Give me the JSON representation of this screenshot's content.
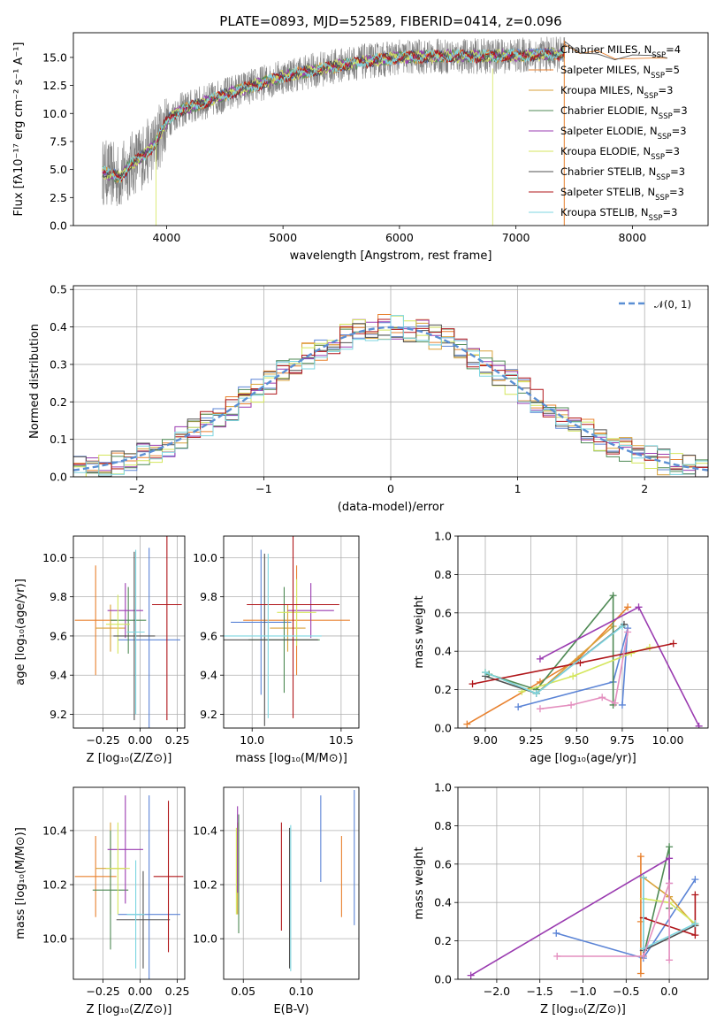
{
  "figure": {
    "title": "PLATE=0893, MJD=52589, FIBERID=0414, z=0.096"
  },
  "models": [
    {
      "name": "Chabrier MILES",
      "nssp": "4",
      "color": "#5b84d6"
    },
    {
      "name": "Salpeter MILES",
      "nssp": "5",
      "color": "#e8812e"
    },
    {
      "name": "Kroupa MILES",
      "nssp": "3",
      "color": "#d9a23a"
    },
    {
      "name": "Chabrier ELODIE",
      "nssp": "3",
      "color": "#4f8a55"
    },
    {
      "name": "Salpeter ELODIE",
      "nssp": "3",
      "color": "#9a3bb0"
    },
    {
      "name": "Kroupa ELODIE",
      "nssp": "3",
      "color": "#d4e65c"
    },
    {
      "name": "Chabrier STELIB",
      "nssp": "3",
      "color": "#505050"
    },
    {
      "name": "Salpeter STELIB",
      "nssp": "3",
      "color": "#b0161a"
    },
    {
      "name": "Kroupa STELIB",
      "nssp": "3",
      "color": "#7dd6e0"
    }
  ],
  "chart_data": [
    {
      "id": "spectrum",
      "type": "line",
      "xlabel": "wavelength [Angstrom, rest frame]",
      "ylabel": "Flux [fλ10⁻¹⁷ erg cm⁻² s⁻¹ A⁻¹]",
      "xlim": [
        3200,
        8650
      ],
      "ylim": [
        0,
        17.2
      ],
      "xticks": [
        "4000",
        "5000",
        "6000",
        "7000",
        "8000"
      ],
      "yticks": [
        "0.0",
        "2.5",
        "5.0",
        "7.5",
        "10.0",
        "12.5",
        "15.0"
      ],
      "legend_position": "top-right",
      "data_range": [
        3450,
        7420
      ],
      "continuum": [
        [
          3450,
          4.8
        ],
        [
          3600,
          4.3
        ],
        [
          3700,
          5.5
        ],
        [
          3800,
          6.2
        ],
        [
          3900,
          7.2
        ],
        [
          4000,
          9.3
        ],
        [
          4100,
          10.2
        ],
        [
          4300,
          10.9
        ],
        [
          4600,
          12.0
        ],
        [
          5000,
          13.3
        ],
        [
          5300,
          13.9
        ],
        [
          5600,
          14.5
        ],
        [
          6000,
          15.0
        ],
        [
          6400,
          15.1
        ],
        [
          6800,
          15.1
        ],
        [
          7100,
          15.2
        ],
        [
          7420,
          15.3
        ]
      ],
      "model_extra": [
        [
          7420,
          16.2
        ],
        [
          7550,
          15.6
        ],
        [
          7700,
          15.3
        ],
        [
          7850,
          15.0
        ],
        [
          8000,
          15.1
        ],
        [
          8200,
          15.0
        ],
        [
          8300,
          14.8
        ]
      ]
    },
    {
      "id": "residuals",
      "type": "histogram",
      "xlabel": "(data-model)/error",
      "ylabel": "Normed distribution",
      "xlim": [
        -2.5,
        2.5
      ],
      "ylim": [
        0,
        0.51
      ],
      "xticks": [
        "−2",
        "−1",
        "0",
        "1",
        "2"
      ],
      "yticks": [
        "0.0",
        "0.1",
        "0.2",
        "0.3",
        "0.4",
        "0.5"
      ],
      "grid": true,
      "bin_width": 0.1,
      "legend": "𝒩(0, 1)",
      "legend_position": "top-right"
    },
    {
      "id": "age-vs-Z",
      "type": "errorbar",
      "xlabel": "Z [log₁₀(Z/Z⊙)]",
      "ylabel": "age  [log₁₀(age/yr)]",
      "xlim": [
        -0.45,
        0.3
      ],
      "ylim": [
        9.13,
        10.11
      ],
      "xticks": [
        "−0.25",
        "0.00",
        "0.25"
      ],
      "yticks": [
        "9.2",
        "9.4",
        "9.6",
        "9.8",
        "10.0"
      ],
      "grid": true,
      "points": [
        {
          "x": 0.06,
          "xerr": 0.21,
          "y": 9.58,
          "yerr": 0.47
        },
        {
          "x": -0.3,
          "xerr": 0.14,
          "y": 9.68,
          "yerr": 0.28
        },
        {
          "x": -0.2,
          "xerr": 0.1,
          "y": 9.64,
          "yerr": 0.12
        },
        {
          "x": -0.08,
          "xerr": 0.12,
          "y": 9.68,
          "yerr": 0.17
        },
        {
          "x": -0.1,
          "xerr": 0.12,
          "y": 9.73,
          "yerr": 0.14
        },
        {
          "x": -0.15,
          "xerr": 0.08,
          "y": 9.66,
          "yerr": 0.15
        },
        {
          "x": -0.04,
          "xerr": 0.14,
          "y": 9.6,
          "yerr": 0.43
        },
        {
          "x": 0.18,
          "xerr": 0.1,
          "y": 9.76,
          "yerr": 0.59
        },
        {
          "x": -0.03,
          "xerr": 0.06,
          "y": 9.62,
          "yerr": 0.42
        }
      ]
    },
    {
      "id": "age-vs-mass",
      "type": "errorbar",
      "xlabel": "mass [log₁₀(M/M⊙)]",
      "ylabel": "",
      "xlim": [
        9.84,
        10.6
      ],
      "ylim": [
        9.13,
        10.11
      ],
      "xticks": [
        "10.0",
        "10.5"
      ],
      "yticks": [
        "9.2",
        "9.4",
        "9.6",
        "9.8",
        "10.0"
      ],
      "grid": true,
      "points": [
        {
          "x": 10.05,
          "xerr": 0.17,
          "y": 9.67,
          "yerr": 0.37
        },
        {
          "x": 10.25,
          "xerr": 0.3,
          "y": 9.68,
          "yerr": 0.28
        },
        {
          "x": 10.2,
          "xerr": 0.1,
          "y": 9.64,
          "yerr": 0.12
        },
        {
          "x": 10.18,
          "xerr": 0.2,
          "y": 9.58,
          "yerr": 0.27
        },
        {
          "x": 10.33,
          "xerr": 0.13,
          "y": 9.73,
          "yerr": 0.14
        },
        {
          "x": 10.25,
          "xerr": 0.11,
          "y": 9.72,
          "yerr": 0.17
        },
        {
          "x": 10.07,
          "xerr": 0.3,
          "y": 9.58,
          "yerr": 0.44
        },
        {
          "x": 10.23,
          "xerr": 0.26,
          "y": 9.76,
          "yerr": 0.58
        },
        {
          "x": 10.09,
          "xerr": 0.3,
          "y": 9.6,
          "yerr": 0.42
        }
      ]
    },
    {
      "id": "weight-vs-age",
      "type": "line",
      "xlabel": "age  [log₁₀(age/yr)]",
      "ylabel": "mass weight",
      "xlim": [
        8.85,
        10.22
      ],
      "ylim": [
        0,
        1
      ],
      "xticks": [
        "9.00",
        "9.25",
        "9.50",
        "9.75",
        "10.00"
      ],
      "yticks": [
        "0.0",
        "0.2",
        "0.4",
        "0.6",
        "0.8",
        "1.0"
      ],
      "grid": true,
      "series": [
        {
          "x": [
            9.18,
            9.7,
            9.78,
            9.75
          ],
          "y": [
            0.11,
            0.24,
            0.52,
            0.12
          ]
        },
        {
          "x": [
            8.9,
            9.3,
            9.51,
            9.78
          ],
          "y": [
            0.02,
            0.24,
            0.36,
            0.63
          ]
        },
        {
          "x": [
            9.0,
            9.28,
            9.7
          ],
          "y": [
            0.29,
            0.18,
            0.53
          ]
        },
        {
          "x": [
            9.02,
            9.28,
            9.7,
            9.7
          ],
          "y": [
            0.28,
            0.2,
            0.69,
            0.12
          ]
        },
        {
          "x": [
            9.3,
            9.84,
            10.17
          ],
          "y": [
            0.36,
            0.63,
            0.01
          ]
        },
        {
          "x": [
            9.2,
            9.48,
            9.8,
            9.9
          ],
          "y": [
            0.19,
            0.27,
            0.39,
            0.42
          ]
        },
        {
          "x": [
            9.0,
            9.28,
            9.76
          ],
          "y": [
            0.27,
            0.18,
            0.54
          ]
        },
        {
          "x": [
            8.93,
            9.52,
            10.03
          ],
          "y": [
            0.23,
            0.34,
            0.44
          ]
        },
        {
          "x": [
            9.0,
            9.28,
            9.75
          ],
          "y": [
            0.29,
            0.18,
            0.53
          ]
        },
        {
          "x": [
            9.3,
            9.47,
            9.64,
            9.71,
            9.78
          ],
          "y": [
            0.1,
            0.12,
            0.16,
            0.13,
            0.5
          ]
        }
      ]
    },
    {
      "id": "mass-vs-Z",
      "type": "errorbar",
      "xlabel": "Z [log₁₀(Z/Z⊙)]",
      "ylabel": "mass [log₁₀(M/M⊙)]",
      "xlim": [
        -0.45,
        0.3
      ],
      "ylim": [
        9.85,
        10.56
      ],
      "xticks": [
        "−0.25",
        "0.00",
        "0.25"
      ],
      "yticks": [
        "10.0",
        "10.2",
        "10.4"
      ],
      "grid": true,
      "points": [
        {
          "x": 0.06,
          "xerr": 0.21,
          "y": 10.09,
          "yerr": 0.44
        },
        {
          "x": -0.3,
          "xerr": 0.14,
          "y": 10.23,
          "yerr": 0.15
        },
        {
          "x": -0.2,
          "xerr": 0.1,
          "y": 10.26,
          "yerr": 0.17
        },
        {
          "x": -0.2,
          "xerr": 0.12,
          "y": 10.18,
          "yerr": 0.22
        },
        {
          "x": -0.1,
          "xerr": 0.12,
          "y": 10.33,
          "yerr": 0.2
        },
        {
          "x": -0.15,
          "xerr": 0.08,
          "y": 10.26,
          "yerr": 0.17
        },
        {
          "x": 0.02,
          "xerr": 0.18,
          "y": 10.07,
          "yerr": 0.18
        },
        {
          "x": 0.19,
          "xerr": 0.1,
          "y": 10.23,
          "yerr": 0.28
        },
        {
          "x": -0.03,
          "xerr": 0.06,
          "y": 10.09,
          "yerr": 0.2
        }
      ]
    },
    {
      "id": "mass-vs-EBV",
      "type": "errorbar",
      "xlabel": "E(B-V)",
      "ylabel": "",
      "xlim": [
        0.033,
        0.15
      ],
      "ylim": [
        9.85,
        10.56
      ],
      "xticks": [
        "0.05",
        "0.10"
      ],
      "yticks": [
        "10.0",
        "10.2",
        "10.4"
      ],
      "grid": true,
      "points": [
        {
          "x": 0.146,
          "y": 10.3,
          "yerr": 0.25
        },
        {
          "x": 0.135,
          "y": 10.23,
          "yerr": 0.15
        },
        {
          "x": 0.045,
          "y": 10.26,
          "yerr": 0.17
        },
        {
          "x": 0.046,
          "y": 10.24,
          "yerr": 0.22
        },
        {
          "x": 0.045,
          "y": 10.33,
          "yerr": 0.16
        },
        {
          "x": 0.044,
          "y": 10.25,
          "yerr": 0.16
        },
        {
          "x": 0.09,
          "y": 10.15,
          "yerr": 0.26
        },
        {
          "x": 0.083,
          "y": 10.23,
          "yerr": 0.2
        },
        {
          "x": 0.091,
          "y": 10.15,
          "yerr": 0.27
        },
        {
          "x": 0.117,
          "y": 10.37,
          "yerr": 0.16
        }
      ]
    },
    {
      "id": "weight-vs-Z",
      "type": "line",
      "xlabel": "Z [log₁₀(Z/Z⊙)]",
      "ylabel": "mass weight",
      "xlim": [
        -2.45,
        0.45
      ],
      "ylim": [
        0,
        1
      ],
      "xticks": [
        "−2.0",
        "−1.5",
        "−1.0",
        "−0.5",
        "0.0"
      ],
      "yticks": [
        "0.0",
        "0.2",
        "0.4",
        "0.6",
        "0.8",
        "1.0"
      ],
      "grid": true,
      "series": [
        {
          "x": [
            -1.31,
            -0.3,
            0.3
          ],
          "y": [
            0.24,
            0.11,
            0.52
          ]
        },
        {
          "x": [
            -0.33,
            -0.33,
            -0.33
          ],
          "y": [
            0.64,
            0.03,
            0.3
          ]
        },
        {
          "x": [
            -0.3,
            0.0,
            0.3
          ],
          "y": [
            0.53,
            0.43,
            0.28
          ]
        },
        {
          "x": [
            -0.3,
            0.0,
            0.0
          ],
          "y": [
            0.12,
            0.69,
            0.37
          ]
        },
        {
          "x": [
            -2.3,
            0.0,
            0.0
          ],
          "y": [
            0.02,
            0.63,
            0.5
          ]
        },
        {
          "x": [
            -0.3,
            0.0,
            0.3
          ],
          "y": [
            0.42,
            0.4,
            0.29
          ]
        },
        {
          "x": [
            -0.3,
            -0.3,
            0.3
          ],
          "y": [
            0.53,
            0.15,
            0.28
          ]
        },
        {
          "x": [
            -0.3,
            0.3,
            0.3
          ],
          "y": [
            0.32,
            0.23,
            0.44
          ]
        },
        {
          "x": [
            -0.3,
            -0.3,
            0.3
          ],
          "y": [
            0.53,
            0.16,
            0.29
          ]
        },
        {
          "x": [
            -1.3,
            -0.3,
            0.0,
            0.0
          ],
          "y": [
            0.12,
            0.12,
            0.5,
            0.1
          ]
        }
      ]
    }
  ]
}
